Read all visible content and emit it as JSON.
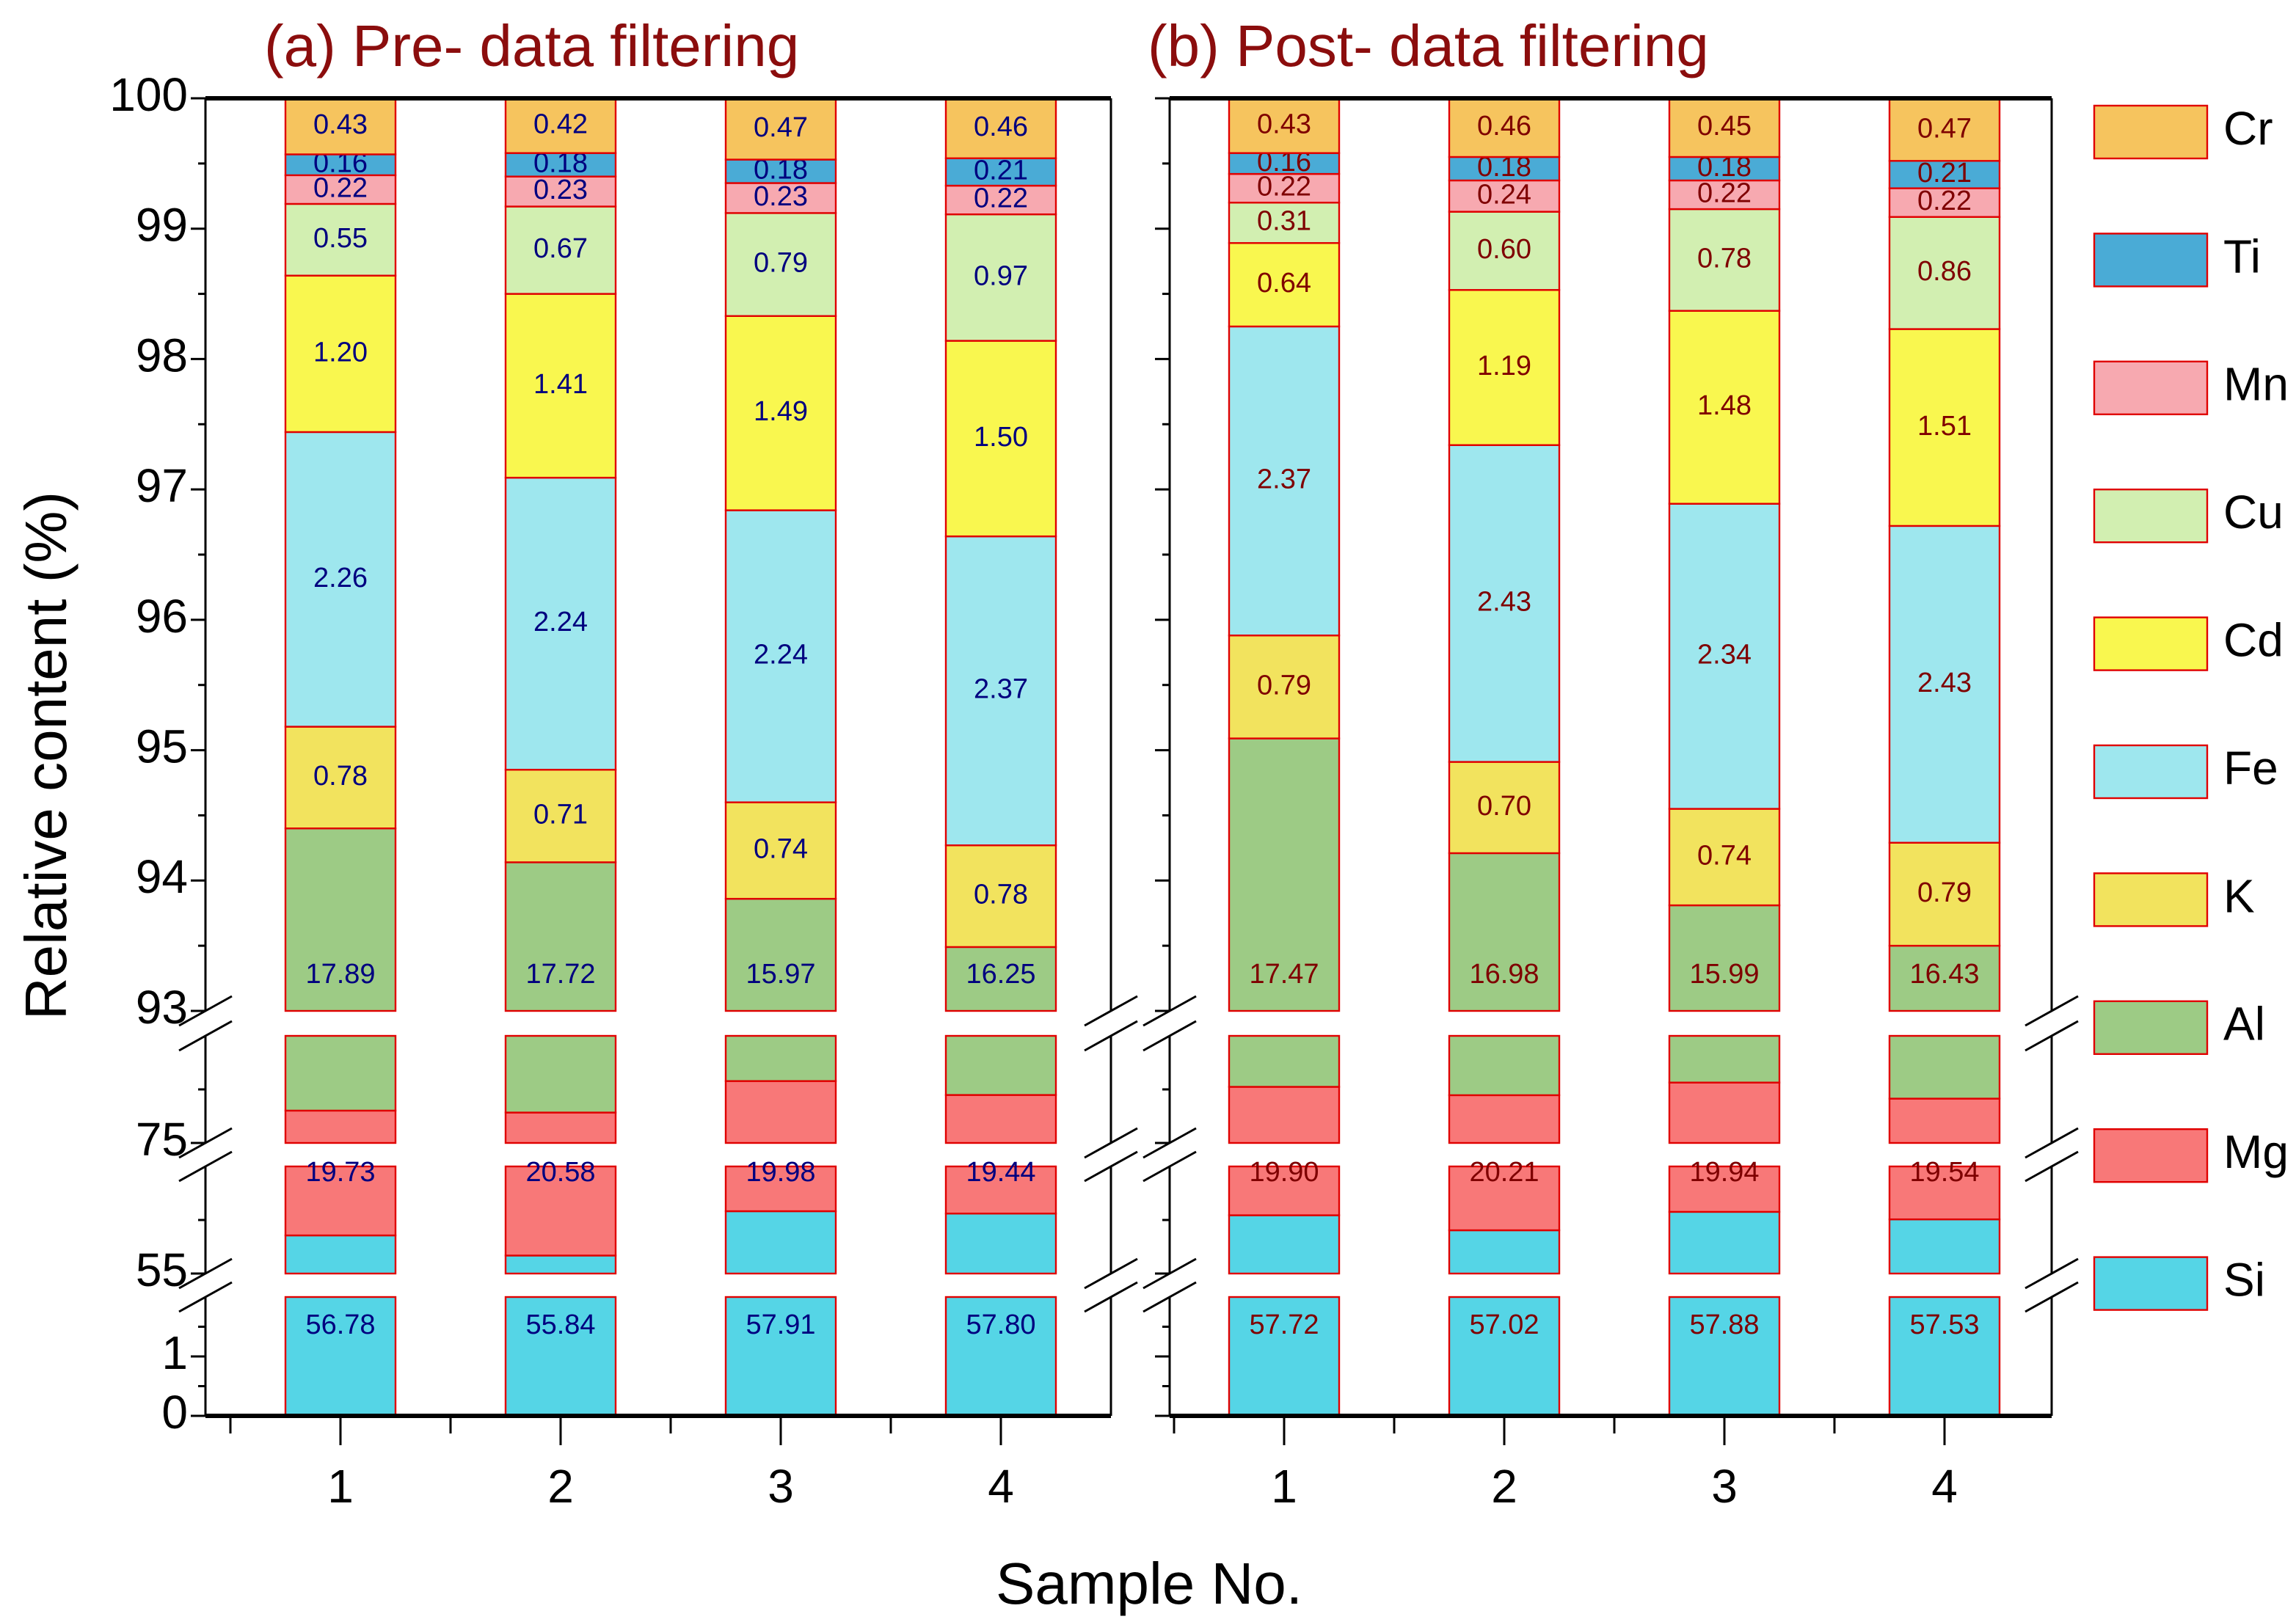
{
  "chart_data": [
    {
      "type": "bar",
      "stacked": true,
      "title": "(a) Pre- data filtering",
      "categories": [
        "1",
        "2",
        "3",
        "4"
      ],
      "label_color": "#00007f",
      "series": [
        {
          "name": "Si",
          "values": [
            56.78,
            55.84,
            57.91,
            57.8
          ]
        },
        {
          "name": "Mg",
          "values": [
            19.73,
            20.58,
            19.98,
            19.44
          ]
        },
        {
          "name": "Al",
          "values": [
            17.89,
            17.72,
            15.97,
            16.25
          ]
        },
        {
          "name": "K",
          "values": [
            0.78,
            0.71,
            0.74,
            0.78
          ]
        },
        {
          "name": "Fe",
          "values": [
            2.26,
            2.24,
            2.24,
            2.37
          ]
        },
        {
          "name": "Cd",
          "values": [
            1.2,
            1.41,
            1.49,
            1.5
          ]
        },
        {
          "name": "Cu",
          "values": [
            0.55,
            0.67,
            0.79,
            0.97
          ]
        },
        {
          "name": "Mn",
          "values": [
            0.22,
            0.23,
            0.23,
            0.22
          ]
        },
        {
          "name": "Ti",
          "values": [
            0.16,
            0.18,
            0.18,
            0.21
          ]
        },
        {
          "name": "Cr",
          "values": [
            0.43,
            0.42,
            0.47,
            0.46
          ]
        }
      ]
    },
    {
      "type": "bar",
      "stacked": true,
      "title": "(b) Post- data filtering",
      "categories": [
        "1",
        "2",
        "3",
        "4"
      ],
      "label_color": "#7f0000",
      "series": [
        {
          "name": "Si",
          "values": [
            57.72,
            57.02,
            57.88,
            57.53
          ]
        },
        {
          "name": "Mg",
          "values": [
            19.9,
            20.21,
            19.94,
            19.54
          ]
        },
        {
          "name": "Al",
          "values": [
            17.47,
            16.98,
            15.99,
            16.43
          ]
        },
        {
          "name": "K",
          "values": [
            0.79,
            0.7,
            0.74,
            0.79
          ]
        },
        {
          "name": "Fe",
          "values": [
            2.37,
            2.43,
            2.34,
            2.43
          ]
        },
        {
          "name": "Cd",
          "values": [
            0.64,
            1.19,
            1.48,
            1.51
          ]
        },
        {
          "name": "Cu",
          "values": [
            0.31,
            0.6,
            0.78,
            0.86
          ]
        },
        {
          "name": "Mn",
          "values": [
            0.22,
            0.24,
            0.22,
            0.22
          ]
        },
        {
          "name": "Ti",
          "values": [
            0.16,
            0.18,
            0.18,
            0.21
          ]
        },
        {
          "name": "Cr",
          "values": [
            0.43,
            0.46,
            0.45,
            0.47
          ]
        }
      ]
    }
  ],
  "axes": {
    "ylabel": "Relative content (%)",
    "xlabel": "Sample No.",
    "y_segments": [
      [
        0,
        2
      ],
      [
        55,
        60
      ],
      [
        75,
        80
      ],
      [
        93,
        100
      ]
    ],
    "y_tick_labels": [
      "100",
      "99",
      "98",
      "97",
      "96",
      "95",
      "94",
      "93",
      "75",
      "55",
      "1",
      "0"
    ],
    "y_tick_values": [
      100,
      99,
      98,
      97,
      96,
      95,
      94,
      93,
      75,
      55,
      1,
      0
    ],
    "title_color": "#8b0d0d"
  },
  "legend": {
    "placement": "right",
    "order": [
      "Cr",
      "Ti",
      "Mn",
      "Cu",
      "Cd",
      "Fe",
      "K",
      "Al",
      "Mg",
      "Si"
    ]
  },
  "colors": {
    "Si": "#55d5e6",
    "Mg": "#f87878",
    "Al": "#9dcb85",
    "K": "#f2e35e",
    "Fe": "#9ee7ee",
    "Cd": "#f9f74f",
    "Cu": "#d2efb1",
    "Mn": "#f7a9b0",
    "Ti": "#4aabd6",
    "Cr": "#f6c45e",
    "bar_border": "#e00000"
  }
}
